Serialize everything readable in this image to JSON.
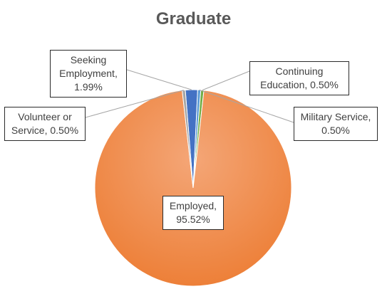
{
  "chart_data": {
    "type": "pie",
    "title": "Graduate",
    "slices": [
      {
        "label": "Seeking Employment",
        "value": 1.99,
        "value_label": "1.99%",
        "color": "#4472C4"
      },
      {
        "label": "Military Service",
        "value": 0.5,
        "value_label": "0.50%",
        "color": "#5B9BD5"
      },
      {
        "label": "Continuing Education",
        "value": 0.5,
        "value_label": "0.50%",
        "color": "#70AD47"
      },
      {
        "label": "Employed",
        "value": 95.52,
        "value_label": "95.52%",
        "color": "#ED7D31"
      },
      {
        "label": "Volunteer or Service",
        "value": 0.5,
        "value_label": "0.50%",
        "color": "#A5A5A5"
      }
    ],
    "legend": "none",
    "data_labels": "category name and percentage in callout boxes"
  },
  "labels": {
    "seeking_cat": "Seeking Employment,",
    "military_cat": "Military Service,",
    "continuing_cat": "Continuing Education,",
    "employed_cat": "Employed,",
    "volunteer_cat": "Volunteer or Service,"
  }
}
